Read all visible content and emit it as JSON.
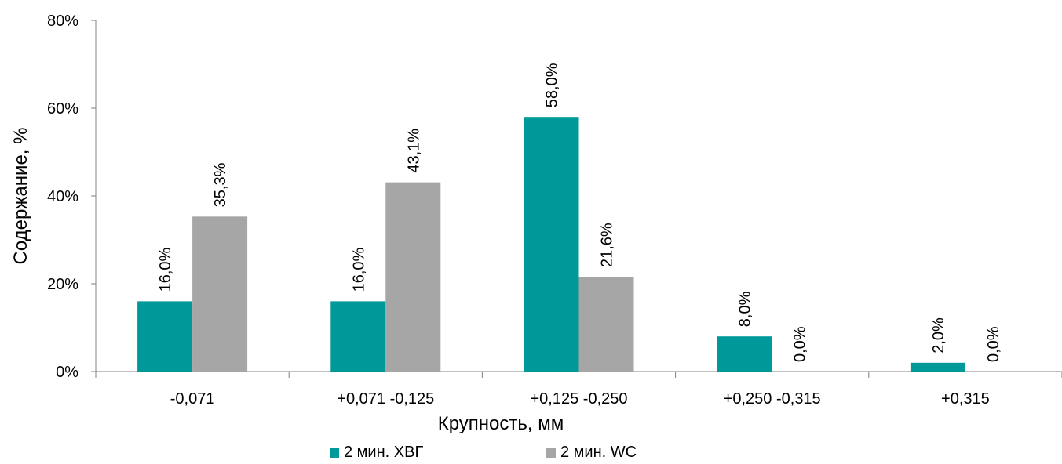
{
  "chart_data": {
    "type": "bar",
    "xlabel": "Крупность, мм",
    "ylabel": "Содержание, %",
    "ylim": [
      0,
      80
    ],
    "yticks": [
      "0%",
      "20%",
      "40%",
      "60%",
      "80%"
    ],
    "ytick_values": [
      0,
      20,
      40,
      60,
      80
    ],
    "categories": [
      "-0,071",
      "+0,071 -0,125",
      "+0,125 -0,250",
      "+0,250 -0,315",
      "+0,315"
    ],
    "series": [
      {
        "name": "2 мин. ХВГ",
        "color": "#009999",
        "values": [
          16.0,
          16.0,
          58.0,
          8.0,
          2.0
        ],
        "labels": [
          "16,0%",
          "16,0%",
          "58,0%",
          "8,0%",
          "2,0%"
        ]
      },
      {
        "name": "2 мин. WC",
        "color": "#a6a6a6",
        "values": [
          35.3,
          43.1,
          21.6,
          0.0,
          0.0
        ],
        "labels": [
          "35,3%",
          "43,1%",
          "21,6%",
          "0,0%",
          "0,0%"
        ]
      }
    ],
    "grid": false,
    "legend_position": "bottom"
  }
}
